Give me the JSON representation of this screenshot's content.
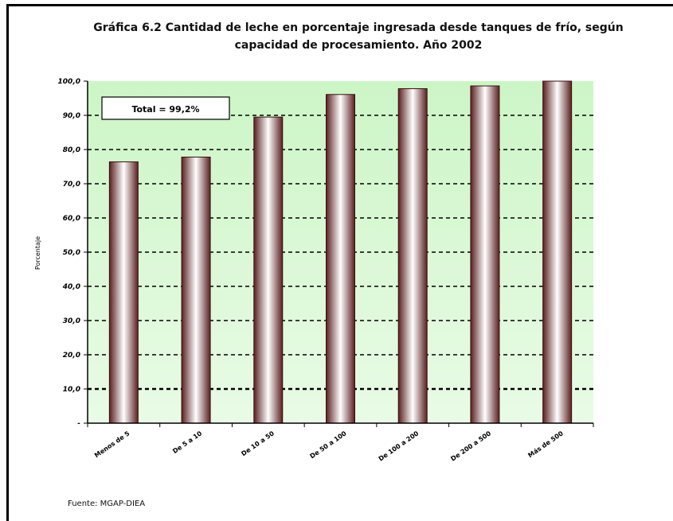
{
  "chart_data": {
    "type": "bar",
    "title": "Gráfica 6.2 Cantidad de leche en porcentaje ingresada desde tanques de frío, según capacidad de procesamiento. Año 2002",
    "ylabel": "Porcentaje",
    "xlabel": "",
    "categories": [
      "Menos de 5",
      "De 5 a 10",
      "De 10 a 50",
      "De 50 a 100",
      "De 100 a 200",
      "De 200 a 500",
      "Más de 500"
    ],
    "values": [
      76.4,
      77.8,
      89.5,
      96.1,
      97.8,
      98.6,
      100.0
    ],
    "ylim": [
      0,
      100
    ],
    "yticks": [
      "-",
      "10,0",
      "20,0",
      "30,0",
      "40,0",
      "50,0",
      "60,0",
      "70,0",
      "80,0",
      "90,0",
      "100,0"
    ],
    "annotation": "Total = 99,2%",
    "source": "Fuente: MGAP-DIEA",
    "grid": true,
    "colors": {
      "plot_bg_top": "#ccf5c6",
      "plot_bg_bottom": "#e9fbe6",
      "bar_dark": "#5a1f20",
      "bar_light": "#ffffff",
      "grid": "#000000"
    }
  }
}
